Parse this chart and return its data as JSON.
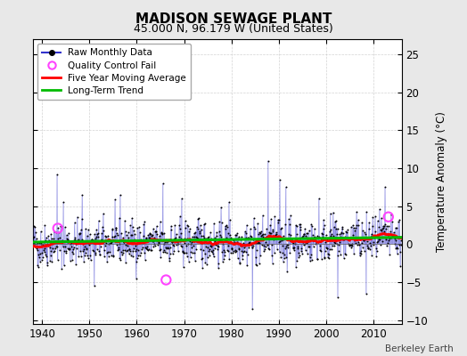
{
  "title": "MADISON SEWAGE PLANT",
  "subtitle": "45.000 N, 96.179 W (United States)",
  "ylabel": "Temperature Anomaly (°C)",
  "credit": "Berkeley Earth",
  "xlim": [
    1938,
    2016
  ],
  "ylim": [
    -10.5,
    27
  ],
  "yticks": [
    -10,
    -5,
    0,
    5,
    10,
    15,
    20,
    25
  ],
  "xticks": [
    1940,
    1950,
    1960,
    1970,
    1980,
    1990,
    2000,
    2010
  ],
  "start_year": 1938,
  "end_year": 2015,
  "seed": 42,
  "bg_color": "#e8e8e8",
  "plot_bg_color": "#ffffff",
  "line_color_raw": "#3333cc",
  "line_color_ma": "#ff0000",
  "line_color_trend": "#00bb00",
  "dot_color": "#000000",
  "qc_fail_color": "#ff44ff",
  "qc_fail_points": [
    [
      1943.3,
      2.1
    ],
    [
      1966.2,
      -4.7
    ],
    [
      2013.2,
      3.6
    ]
  ],
  "trend_slope": 0.008,
  "trend_intercept": 0.28
}
